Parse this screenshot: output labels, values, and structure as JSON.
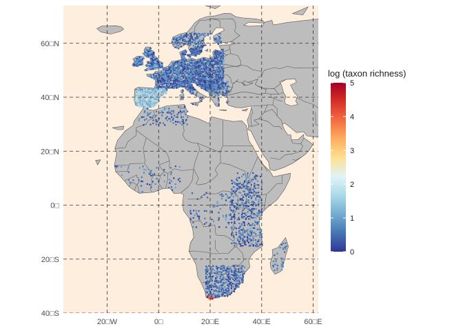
{
  "colors": {
    "ocean": "#fdeedd",
    "land": "#bdbdbd",
    "border": "#555555",
    "grid": "#333333",
    "low": "#313695",
    "mid": "#f5f2c8",
    "high": "#a50026"
  },
  "chart_data": {
    "type": "heatmap",
    "projection": "equirectangular",
    "xlim": [
      -37,
      62
    ],
    "ylim": [
      -40,
      74
    ],
    "x_ticks": [
      {
        "value": -20,
        "label": "20□W"
      },
      {
        "value": 0,
        "label": "0□"
      },
      {
        "value": 20,
        "label": "20□E"
      },
      {
        "value": 40,
        "label": "40□E"
      },
      {
        "value": 60,
        "label": "60□E"
      }
    ],
    "y_ticks": [
      {
        "value": 60,
        "label": "60□N"
      },
      {
        "value": 40,
        "label": "40□N"
      },
      {
        "value": 20,
        "label": "20□N"
      },
      {
        "value": 0,
        "label": "0□"
      },
      {
        "value": -20,
        "label": "20□S"
      },
      {
        "value": -40,
        "label": "40□S"
      }
    ],
    "grid": true,
    "grid_style": "dashed",
    "legend": {
      "title": "log (taxon richness)",
      "min": 0,
      "max": 5,
      "ticks": [
        "0",
        "1",
        "2",
        "3",
        "4",
        "5"
      ],
      "palette": [
        "#313695",
        "#4575b4",
        "#74add1",
        "#abd9e9",
        "#e0f3f8",
        "#fee090",
        "#fdae61",
        "#f46d43",
        "#d73027",
        "#a50026"
      ],
      "placement": "right"
    },
    "occurrence_regions": [
      {
        "region": "Western and Central Europe",
        "lon": [
          -10,
          25
        ],
        "lat": [
          43,
          58
        ],
        "density": 0.9,
        "value_range": [
          0,
          1
        ]
      },
      {
        "region": "Iberian Peninsula",
        "lon": [
          -9.5,
          3
        ],
        "lat": [
          36,
          43.5
        ],
        "density": 0.85,
        "value_range": [
          1,
          2
        ]
      },
      {
        "region": "British Isles",
        "lon": [
          -10,
          2
        ],
        "lat": [
          50,
          59
        ],
        "density": 0.85,
        "value_range": [
          0,
          1.5
        ]
      },
      {
        "region": "Southern Scandinavia",
        "lon": [
          5,
          24
        ],
        "lat": [
          56,
          64
        ],
        "density": 0.6,
        "value_range": [
          0,
          1
        ]
      },
      {
        "region": "Italy and Balkans",
        "lon": [
          8,
          27
        ],
        "lat": [
          37,
          46
        ],
        "density": 0.45,
        "value_range": [
          0,
          1
        ]
      },
      {
        "region": "Maghreb",
        "lon": [
          -8,
          11
        ],
        "lat": [
          30,
          37
        ],
        "density": 0.2,
        "value_range": [
          0,
          1
        ]
      },
      {
        "region": "West Africa",
        "lon": [
          -17,
          8
        ],
        "lat": [
          4,
          15
        ],
        "density": 0.08,
        "value_range": [
          0,
          1
        ]
      },
      {
        "region": "East African Rift",
        "lon": [
          28,
          40
        ],
        "lat": [
          -15,
          12
        ],
        "density": 0.35,
        "value_range": [
          0,
          1
        ]
      },
      {
        "region": "Congo Basin",
        "lon": [
          12,
          28
        ],
        "lat": [
          -8,
          5
        ],
        "density": 0.12,
        "value_range": [
          0,
          1
        ]
      },
      {
        "region": "Southern Africa",
        "lon": [
          18,
          33
        ],
        "lat": [
          -34,
          -22
        ],
        "density": 0.55,
        "value_range": [
          0,
          1
        ]
      },
      {
        "region": "Cape Region",
        "lon": [
          18,
          21
        ],
        "lat": [
          -34.5,
          -33.5
        ],
        "density": 1.0,
        "value_range": [
          3.5,
          5
        ]
      },
      {
        "region": "Madagascar",
        "lon": [
          43.5,
          50
        ],
        "lat": [
          -25,
          -13
        ],
        "density": 0.25,
        "value_range": [
          0,
          1
        ]
      }
    ]
  }
}
